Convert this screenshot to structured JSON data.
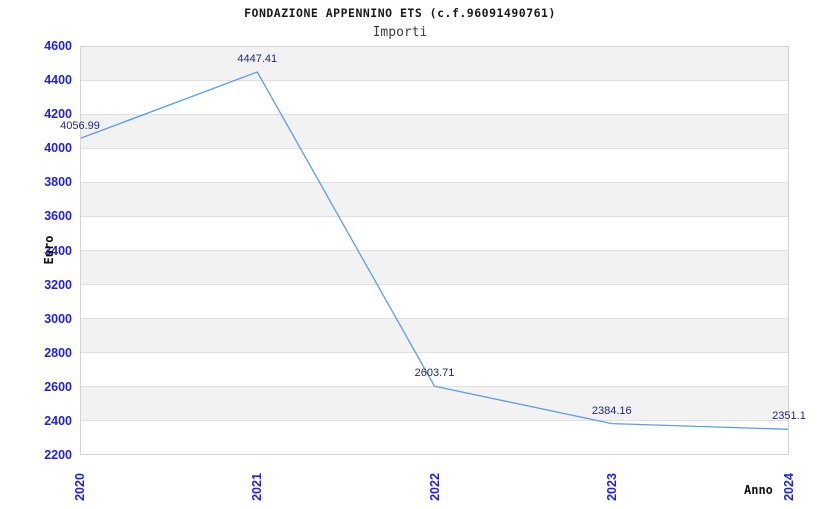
{
  "header": {
    "title": "FONDAZIONE APPENNINO ETS (c.f.96091490761)",
    "subtitle": "Importi"
  },
  "chart_data": {
    "type": "line",
    "title": "FONDAZIONE APPENNINO ETS (c.f.96091490761)",
    "subtitle": "Importi",
    "xlabel": "Anno",
    "ylabel": "Euro",
    "categories": [
      "2020",
      "2021",
      "2022",
      "2023",
      "2024"
    ],
    "series": [
      {
        "name": "Importi",
        "values": [
          4056.99,
          4447.41,
          2603.71,
          2384.16,
          2351.1
        ]
      }
    ],
    "point_labels": [
      "4056.99",
      "4447.41",
      "2603.71",
      "2384.16",
      "2351.1"
    ],
    "ylim": [
      2200,
      4600
    ],
    "ytick_step": 200,
    "yticks": [
      2200,
      2400,
      2600,
      2800,
      3000,
      3200,
      3400,
      3600,
      3800,
      4000,
      4200,
      4400,
      4600
    ],
    "grid": true,
    "banded_background": true,
    "legend_position": "none",
    "colors": {
      "line": "#5e9ce5",
      "tick_label": "#2121d6",
      "point_label": "#26267f",
      "band": "#f2f2f2",
      "gridline": "#e0e0e0",
      "plot_border": "#d4d4d4",
      "title": "#1a1a1a",
      "subtitle": "#3f3f3f",
      "axis_title": "#111111"
    }
  }
}
